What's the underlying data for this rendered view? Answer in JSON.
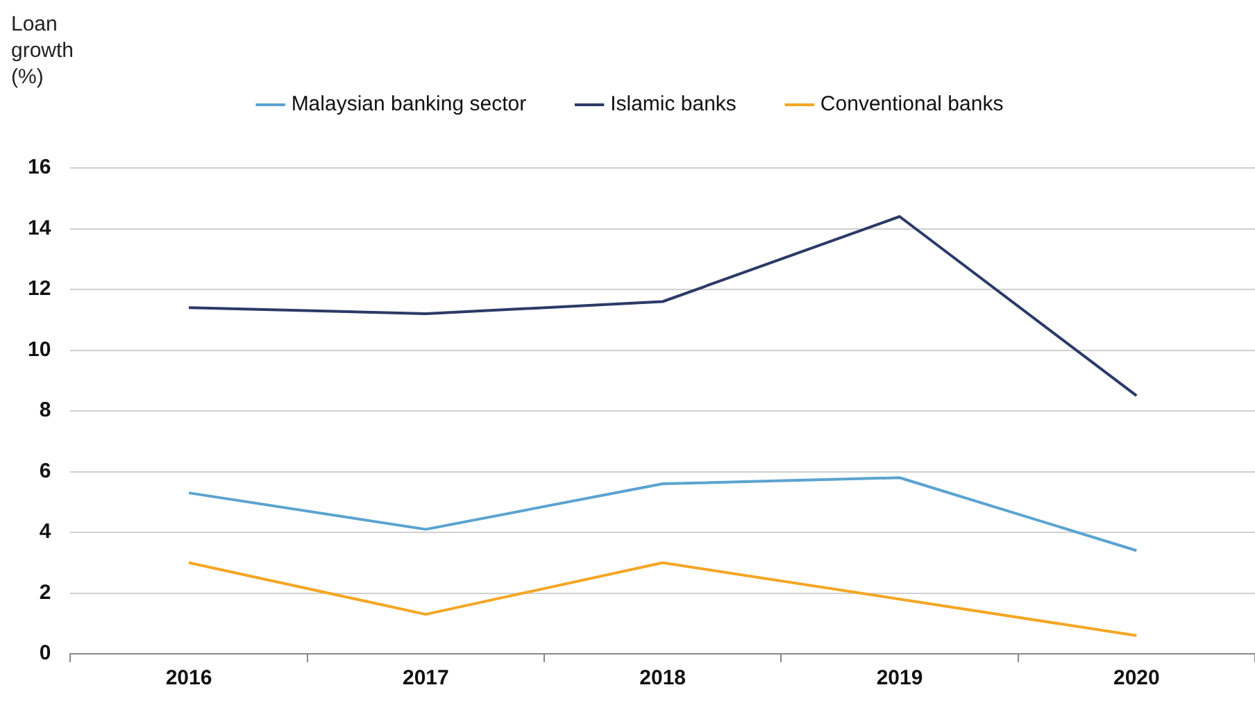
{
  "chart_data": {
    "type": "line",
    "ylabel": "Loan growth (%)",
    "categories": [
      "2016",
      "2017",
      "2018",
      "2019",
      "2020"
    ],
    "series": [
      {
        "name": "Malaysian banking sector",
        "color": "#5ba3d0",
        "values": [
          5.3,
          4.1,
          5.6,
          5.8,
          3.4
        ]
      },
      {
        "name": "Islamic banks",
        "color": "#2b3a67",
        "values": [
          11.4,
          11.2,
          11.6,
          14.4,
          8.5
        ]
      },
      {
        "name": "Conventional banks",
        "color": "#f5a623",
        "values": [
          3.0,
          1.3,
          3.0,
          1.8,
          0.6
        ]
      }
    ],
    "ylim": [
      0,
      16
    ],
    "yticks": [
      0,
      2,
      4,
      6,
      8,
      10,
      12,
      14,
      16
    ],
    "grid": "y",
    "legend": "top",
    "marker": "none",
    "line_style": "solid"
  }
}
